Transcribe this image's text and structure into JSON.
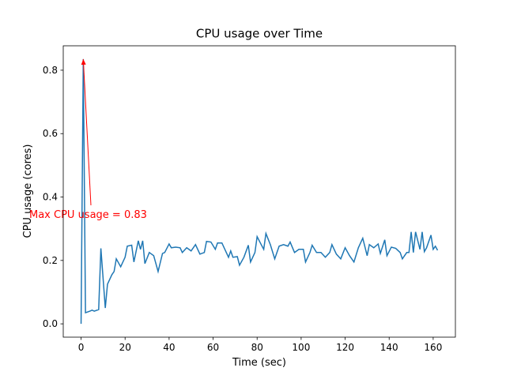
{
  "chart_data": {
    "type": "line",
    "title": "CPU usage over Time",
    "x_label": "Time (sec)",
    "y_label": "CPU usage (cores)",
    "annotation": "Max CPU usage = 0.83",
    "annotation_color": "#ff0000",
    "xlim": [
      -8.1,
      170.1
    ],
    "ylim": [
      -0.042,
      0.877
    ],
    "xticks": [
      0,
      20,
      40,
      60,
      80,
      100,
      120,
      140,
      160
    ],
    "yticks": [
      {
        "value": 0,
        "label": "0.0"
      },
      0.2,
      0.4,
      0.6,
      0.8
    ],
    "series": [
      {
        "name": "CPU usage",
        "color": "#1f77b4",
        "x": [
          0,
          1,
          2,
          4,
          5,
          6,
          8,
          9,
          11,
          12,
          14,
          15,
          16,
          18,
          20,
          21,
          23,
          24,
          26,
          27,
          28,
          29,
          31,
          33,
          35,
          37,
          38,
          40,
          41,
          43,
          45,
          46,
          48,
          50,
          52,
          54,
          56,
          57,
          59,
          61,
          62,
          64,
          66,
          67,
          68,
          69,
          71,
          72,
          74,
          76,
          77,
          79,
          80,
          82,
          83,
          84,
          86,
          88,
          90,
          92,
          94,
          95,
          97,
          99,
          101,
          102,
          104,
          105,
          107,
          109,
          111,
          113,
          114,
          116,
          118,
          120,
          122,
          124,
          126,
          128,
          130,
          131,
          133,
          135,
          136,
          138,
          139,
          141,
          143,
          145,
          146,
          148,
          149,
          150,
          151,
          152,
          154,
          155,
          156,
          157,
          159,
          160,
          161,
          162
        ],
        "values": [
          0.0,
          0.835,
          0.035,
          0.04,
          0.043,
          0.04,
          0.045,
          0.238,
          0.05,
          0.125,
          0.155,
          0.165,
          0.205,
          0.18,
          0.21,
          0.245,
          0.248,
          0.195,
          0.262,
          0.235,
          0.262,
          0.19,
          0.225,
          0.215,
          0.165,
          0.222,
          0.225,
          0.252,
          0.24,
          0.242,
          0.24,
          0.225,
          0.24,
          0.23,
          0.25,
          0.22,
          0.225,
          0.26,
          0.258,
          0.235,
          0.255,
          0.255,
          0.225,
          0.21,
          0.23,
          0.21,
          0.212,
          0.185,
          0.21,
          0.248,
          0.195,
          0.225,
          0.275,
          0.248,
          0.235,
          0.285,
          0.25,
          0.205,
          0.245,
          0.25,
          0.245,
          0.258,
          0.225,
          0.235,
          0.235,
          0.195,
          0.225,
          0.248,
          0.225,
          0.225,
          0.21,
          0.225,
          0.25,
          0.22,
          0.205,
          0.24,
          0.215,
          0.195,
          0.24,
          0.27,
          0.215,
          0.25,
          0.24,
          0.252,
          0.222,
          0.265,
          0.215,
          0.242,
          0.238,
          0.225,
          0.205,
          0.225,
          0.225,
          0.29,
          0.225,
          0.29,
          0.235,
          0.29,
          0.228,
          0.24,
          0.28,
          0.235,
          0.245,
          0.232
        ]
      }
    ]
  }
}
